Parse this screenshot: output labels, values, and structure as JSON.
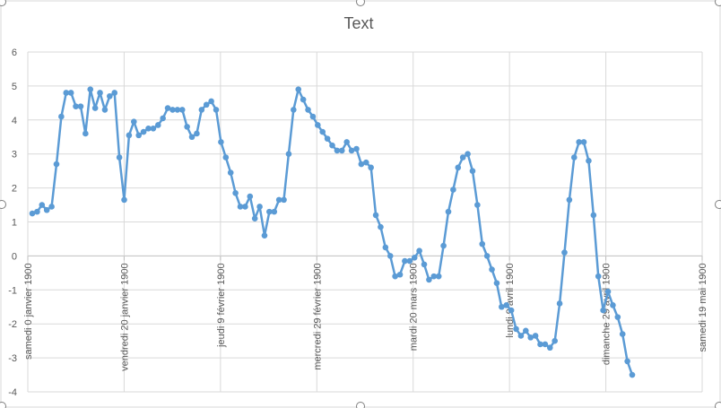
{
  "chart_data": {
    "type": "line",
    "title": "Text",
    "xlabel": "",
    "ylabel": "",
    "ylim": [
      -4,
      6
    ],
    "yticks": [
      6,
      5,
      4,
      3,
      2,
      1,
      0,
      -1,
      -2,
      -3,
      -4
    ],
    "grid": "horizontal and vertical",
    "legend": "none",
    "line_color": "#5b9bd5",
    "x_tick_labels": [
      "samedi 0 janvier 1900",
      "vendredi 20 janvier 1900",
      "jeudi 9 février 1900",
      "mercredi 29 février 1900",
      "mardi 20 mars 1900",
      "lundi 9 avril 1900",
      "dimanche 29 avril 1900",
      "samedi 19 mai 1900"
    ],
    "series": [
      {
        "values": [
          1.25,
          1.3,
          1.5,
          1.35,
          1.45,
          2.7,
          4.1,
          4.8,
          4.8,
          4.4,
          4.4,
          3.6,
          4.9,
          4.35,
          4.8,
          4.3,
          4.7,
          4.8,
          2.9,
          1.65,
          3.55,
          3.95,
          3.55,
          3.65,
          3.75,
          3.75,
          3.85,
          4.05,
          4.35,
          4.3,
          4.3,
          4.3,
          3.8,
          3.5,
          3.6,
          4.3,
          4.45,
          4.55,
          4.3,
          3.35,
          2.9,
          2.45,
          1.85,
          1.45,
          1.45,
          1.75,
          1.1,
          1.45,
          0.6,
          1.3,
          1.3,
          1.65,
          1.65,
          3.0,
          4.3,
          4.9,
          4.6,
          4.3,
          4.1,
          3.85,
          3.65,
          3.45,
          3.25,
          3.1,
          3.1,
          3.35,
          3.1,
          3.15,
          2.7,
          2.75,
          2.6,
          1.2,
          0.85,
          0.25,
          0.0,
          -0.6,
          -0.55,
          -0.15,
          -0.15,
          -0.05,
          0.15,
          -0.25,
          -0.7,
          -0.6,
          -0.6,
          0.3,
          1.3,
          1.95,
          2.6,
          2.9,
          3.0,
          2.5,
          1.5,
          0.35,
          0.0,
          -0.4,
          -0.8,
          -1.5,
          -1.45,
          -1.6,
          -2.15,
          -2.35,
          -2.2,
          -2.4,
          -2.35,
          -2.6,
          -2.6,
          -2.7,
          -2.5,
          -1.4,
          0.1,
          1.65,
          2.9,
          3.35,
          3.35,
          2.8,
          1.2,
          -0.6,
          -1.6,
          -1.05,
          -1.45,
          -1.8,
          -2.3,
          -3.1,
          -3.5
        ]
      }
    ]
  }
}
